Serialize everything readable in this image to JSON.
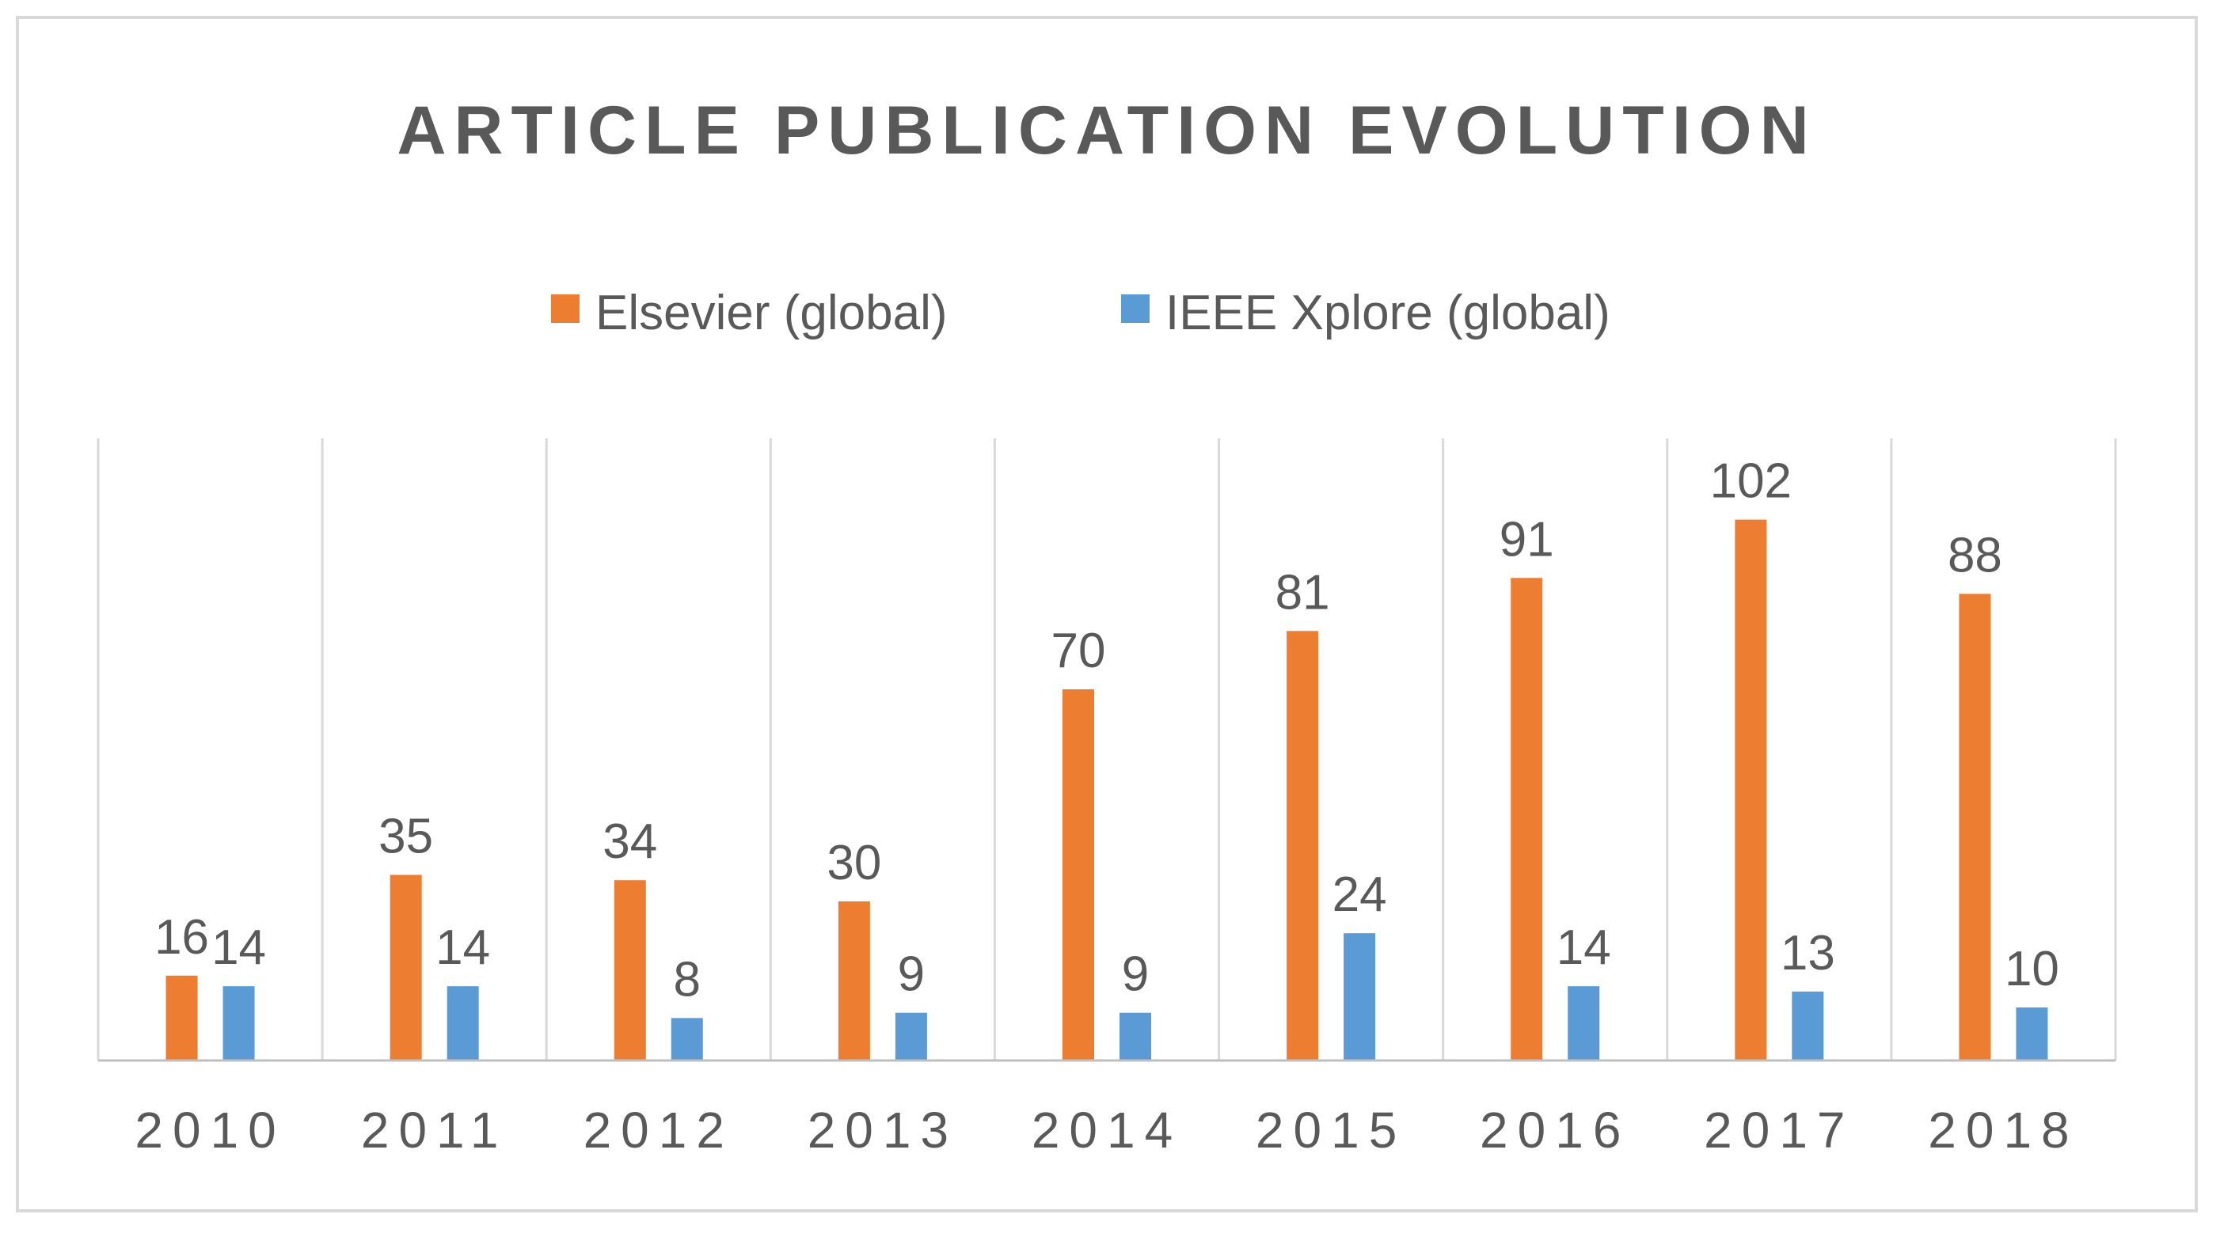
{
  "chart_data": {
    "type": "bar",
    "title": "ARTICLE PUBLICATION EVOLUTION",
    "categories": [
      "2010",
      "2011",
      "2012",
      "2013",
      "2014",
      "2015",
      "2016",
      "2017",
      "2018"
    ],
    "series": [
      {
        "name": "Elsevier (global)",
        "color": "#ed7d31",
        "values": [
          16,
          35,
          34,
          30,
          70,
          81,
          91,
          102,
          88
        ]
      },
      {
        "name": "IEEE Xplore (global)",
        "color": "#5b9bd5",
        "values": [
          14,
          14,
          8,
          9,
          9,
          24,
          14,
          13,
          10
        ]
      }
    ],
    "xlabel": "",
    "ylabel": "",
    "ylim": [
      0,
      120
    ],
    "grid": "vertical-category-separators",
    "legend": "top-center",
    "data_labels": true
  },
  "colors": {
    "title": "#595959",
    "labels": "#595959",
    "axis": "#bfbfbf",
    "frame": "#d9d9d9"
  }
}
